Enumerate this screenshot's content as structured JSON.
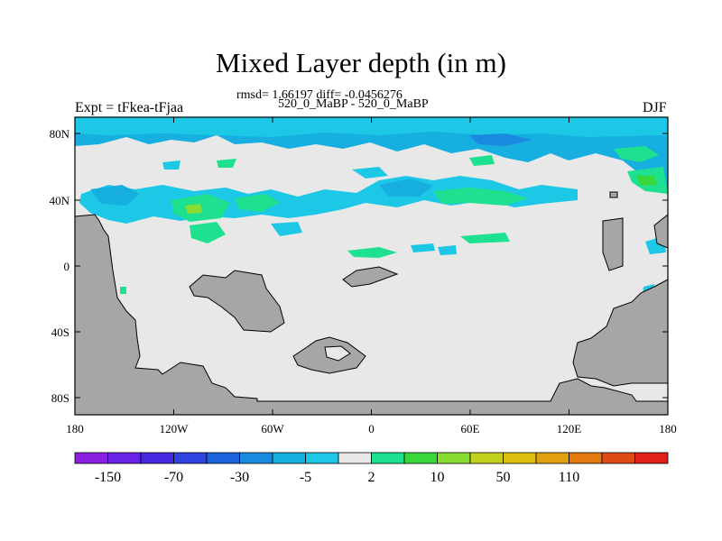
{
  "title": "Mixed Layer depth (in m)",
  "stats": "rmsd= 1.66197 diff= -0.0456276",
  "subtitle": "520_0_MaBP - 520_0_MaBP",
  "left_label": "Expt = tFkea-tFjaa",
  "right_label": "DJF",
  "axes": {
    "x_ticks": [
      "180",
      "120W",
      "60W",
      "0",
      "60E",
      "120E",
      "180"
    ],
    "y_ticks": [
      "80N",
      "40N",
      "0",
      "40S",
      "80S"
    ]
  },
  "colorbar": {
    "colors": [
      "#8c1ee0",
      "#6a23e6",
      "#4628e0",
      "#2f43e0",
      "#1c64dd",
      "#1a8ae0",
      "#17aee0",
      "#1cc8e6",
      "#e8e8e8",
      "#1ee18f",
      "#38d83a",
      "#88dc32",
      "#c0d21c",
      "#dcc010",
      "#e0a00f",
      "#e27a10",
      "#e04a15",
      "#e0201a"
    ],
    "labels": [
      "-150",
      "-70",
      "-30",
      "-5",
      "2",
      "10",
      "50",
      "110"
    ]
  },
  "colors": {
    "land": "#a6a6a6",
    "ocean_background": "#e8e8e8"
  }
}
